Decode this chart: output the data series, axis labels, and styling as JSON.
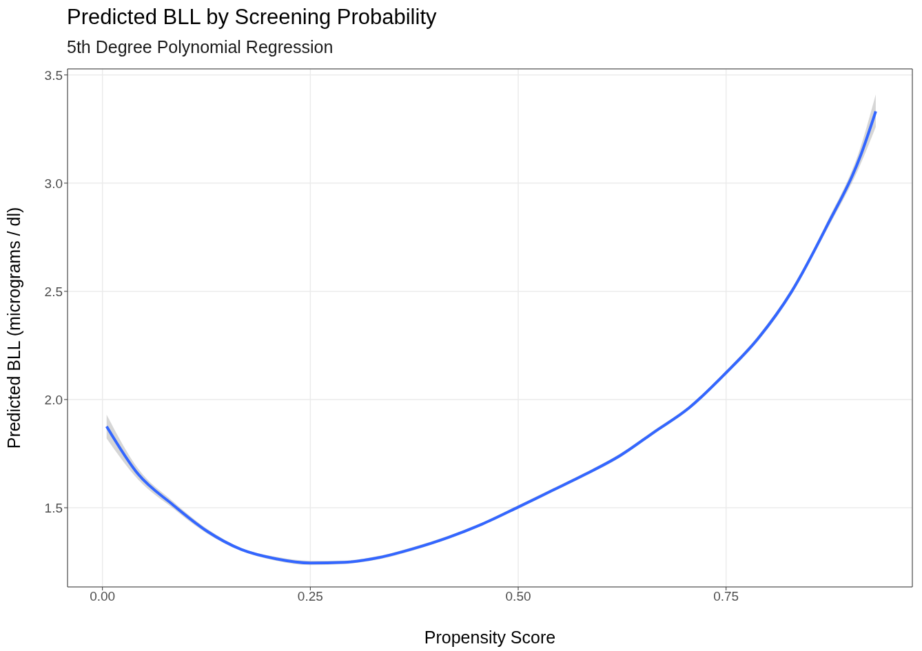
{
  "chart_data": {
    "type": "line",
    "title": "Predicted BLL by Screening Probability",
    "subtitle": "5th Degree Polynomial Regression",
    "xlabel": "Propensity Score",
    "ylabel": "Predicted BLL (micrograms / dl)",
    "xlim": [
      -0.042,
      0.974
    ],
    "xticks": [
      {
        "value": 0,
        "label": "0.00"
      },
      {
        "value": 0.25,
        "label": "0.25"
      },
      {
        "value": 0.5,
        "label": "0.50"
      },
      {
        "value": 0.75,
        "label": "0.75"
      }
    ],
    "ylim": [
      1.134,
      3.528
    ],
    "yticks": [
      {
        "value": 1.5,
        "label": "1.5"
      },
      {
        "value": 2,
        "label": "2.0"
      },
      {
        "value": 2.5,
        "label": "2.5"
      },
      {
        "value": 3,
        "label": "3.0"
      },
      {
        "value": 3.5,
        "label": "3.5"
      }
    ],
    "grid": true,
    "legend": false,
    "series": [
      {
        "color": "#3366ff",
        "x": [
          0.005,
          0.043,
          0.084,
          0.126,
          0.167,
          0.209,
          0.25,
          0.291,
          0.333,
          0.374,
          0.416,
          0.457,
          0.5,
          0.54,
          0.581,
          0.623,
          0.664,
          0.705,
          0.75,
          0.788,
          0.829,
          0.871,
          0.912,
          0.93
        ],
        "values": [
          1.876,
          1.655,
          1.516,
          1.391,
          1.307,
          1.264,
          1.245,
          1.248,
          1.27,
          1.311,
          1.363,
          1.425,
          1.503,
          1.578,
          1.655,
          1.742,
          1.851,
          1.96,
          2.124,
          2.28,
          2.5,
          2.8,
          3.13,
          3.332
        ],
        "lower": [
          1.82,
          1.63,
          1.5,
          1.38,
          1.3,
          1.255,
          1.235,
          1.24,
          1.262,
          1.303,
          1.356,
          1.418,
          1.495,
          1.57,
          1.647,
          1.733,
          1.842,
          1.951,
          2.114,
          2.268,
          2.486,
          2.782,
          3.09,
          3.26
        ],
        "upper": [
          1.93,
          1.68,
          1.532,
          1.402,
          1.314,
          1.273,
          1.255,
          1.256,
          1.278,
          1.319,
          1.37,
          1.432,
          1.511,
          1.586,
          1.663,
          1.751,
          1.86,
          1.969,
          2.134,
          2.292,
          2.514,
          2.818,
          3.17,
          3.41
        ]
      }
    ]
  }
}
